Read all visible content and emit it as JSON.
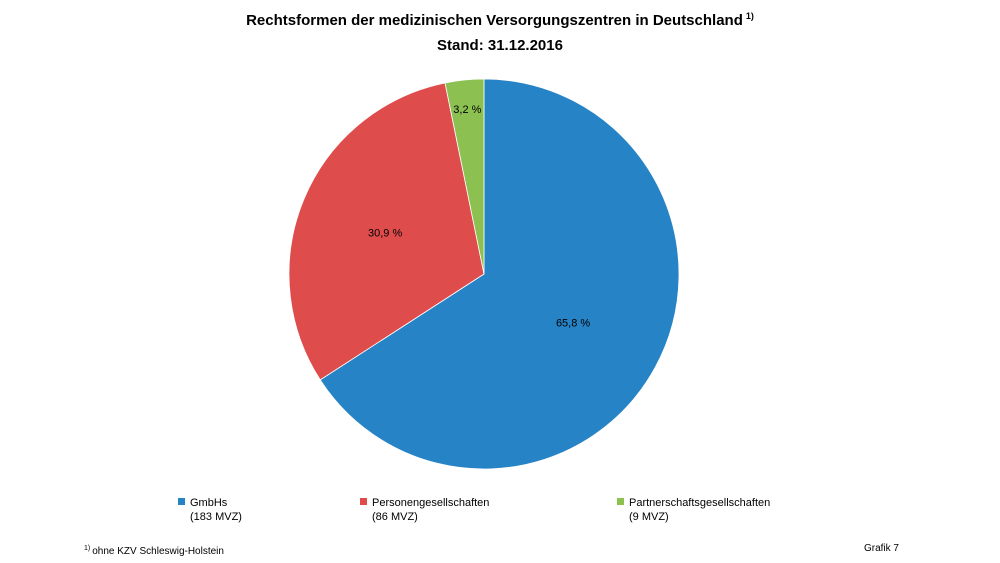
{
  "title": "Rechtsformen der medizinischen Versorgungszentren in Deutschland",
  "title_superscript": "1)",
  "subtitle": "Stand: 31.12.2016",
  "chart_data": {
    "type": "pie",
    "title": "Rechtsformen der medizinischen Versorgungszentren in Deutschland",
    "subtitle": "Stand: 31.12.2016",
    "slices": [
      {
        "name": "GmbHs",
        "count_label": "(183 MVZ)",
        "value": 65.8,
        "label": "65,8 %",
        "color": "#2683c6"
      },
      {
        "name": "Personengesellschaften",
        "count_label": "(86 MVZ)",
        "value": 30.9,
        "label": "30,9 %",
        "color": "#de4d4b"
      },
      {
        "name": "Partnerschaftsgesellschaften",
        "count_label": "(9 MVZ)",
        "value": 3.2,
        "label": "3,2 %",
        "color": "#8cc152"
      }
    ],
    "legend_position": "bottom"
  },
  "footnote": {
    "marker": "1)",
    "text": "ohne KZV Schleswig-Holstein"
  },
  "figure_number": "Grafik 7"
}
